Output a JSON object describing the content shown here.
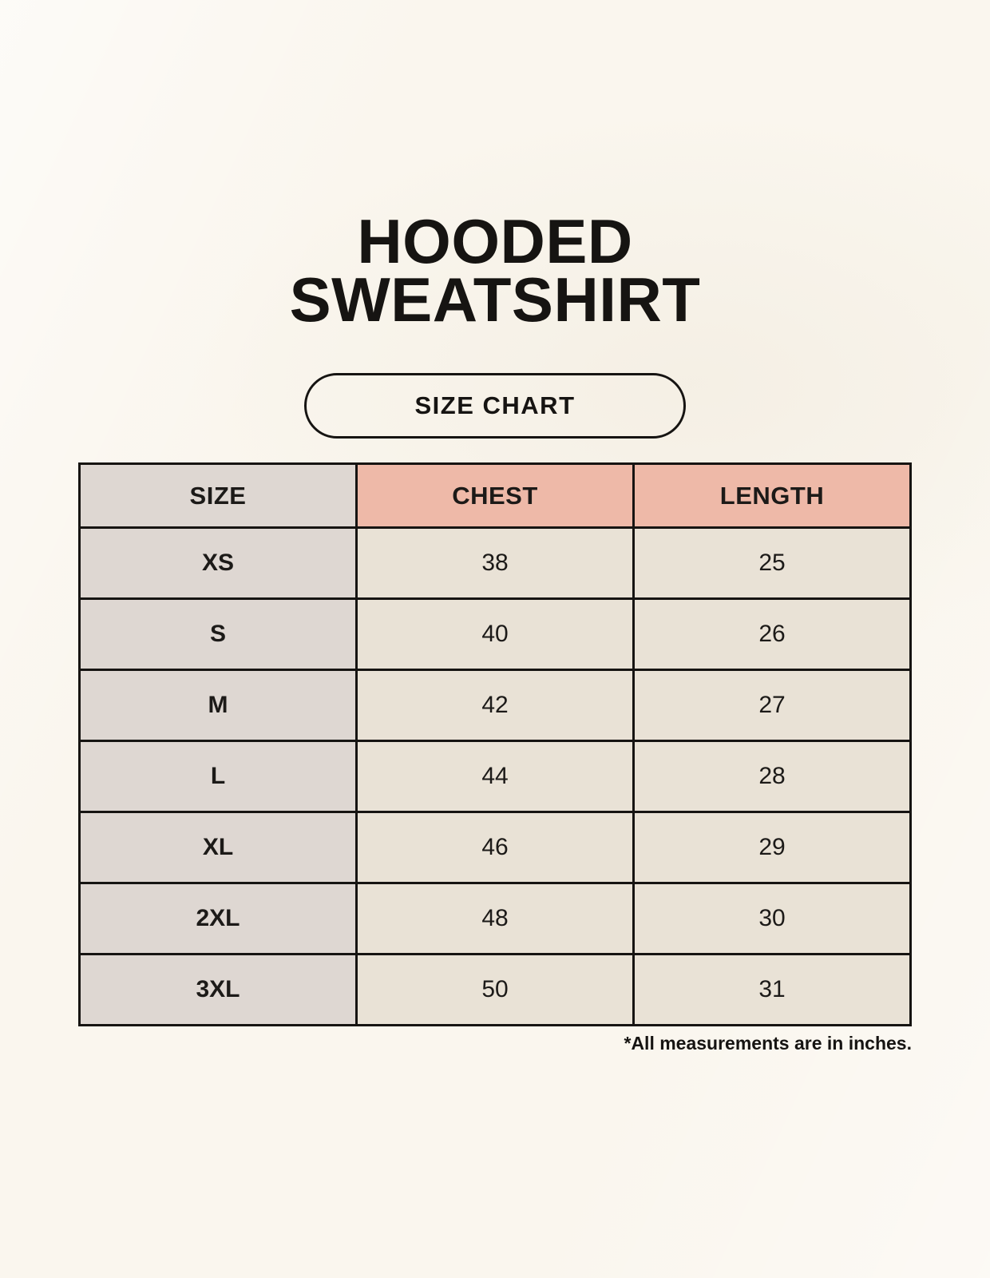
{
  "title": {
    "line1": "HOODED",
    "line2": "SWEATSHIRT"
  },
  "size_chart_button": {
    "label": "SIZE CHART"
  },
  "footnote": "*All measurements are in inches.",
  "colors": {
    "page_background": "#faf6ee",
    "size_column_background": "#ded7d2",
    "header_accent_background": "#eeb9a8",
    "data_cell_background": "#e9e2d6",
    "table_border": "#161412",
    "text": "#1c1a18"
  },
  "chart_data": {
    "type": "table",
    "title": "HOODED SWEATSHIRT",
    "subtitle": "SIZE CHART",
    "columns": [
      "SIZE",
      "CHEST",
      "LENGTH"
    ],
    "rows": [
      [
        "XS",
        "38",
        "25"
      ],
      [
        "S",
        "40",
        "26"
      ],
      [
        "M",
        "42",
        "27"
      ],
      [
        "L",
        "44",
        "28"
      ],
      [
        "XL",
        "46",
        "29"
      ],
      [
        "2XL",
        "48",
        "30"
      ],
      [
        "3XL",
        "50",
        "31"
      ]
    ],
    "unit_note": "*All measurements are in inches."
  }
}
